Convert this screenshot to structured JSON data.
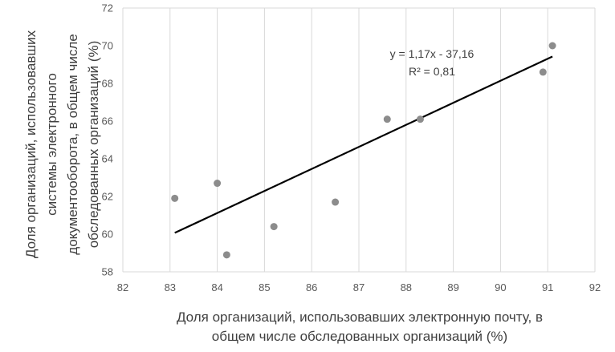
{
  "chart_data": {
    "type": "scatter",
    "title": "",
    "xlabel": "Доля организаций, использовавших электронную почту, в общем числе обследованных организаций (%)",
    "xlabel_lines": [
      "Доля организаций, использовавших электронную почту, в",
      "общем числе обследованных организаций (%)"
    ],
    "ylabel": "Доля организаций, использовавших системы электронного документооборота, в общем числе обследованных организаций (%)",
    "ylabel_lines": [
      "Доля организаций, использовавших",
      "системы электронного",
      "документооборота, в общем числе",
      "обследованных организаций (%)"
    ],
    "xlim": [
      82,
      92
    ],
    "ylim": [
      58,
      72
    ],
    "xticks": [
      82,
      83,
      84,
      85,
      86,
      87,
      88,
      89,
      90,
      91,
      92
    ],
    "yticks": [
      58,
      60,
      62,
      64,
      66,
      68,
      70,
      72
    ],
    "grid": "vertical",
    "legend": "none",
    "points": [
      {
        "x": 83.1,
        "y": 61.9
      },
      {
        "x": 84.0,
        "y": 62.7
      },
      {
        "x": 84.2,
        "y": 58.9
      },
      {
        "x": 85.2,
        "y": 60.4
      },
      {
        "x": 86.5,
        "y": 61.7
      },
      {
        "x": 87.6,
        "y": 66.1
      },
      {
        "x": 88.3,
        "y": 66.1
      },
      {
        "x": 90.9,
        "y": 68.6
      },
      {
        "x": 91.1,
        "y": 70.0
      }
    ],
    "trendline": {
      "type": "linear",
      "slope": 1.17,
      "intercept": -37.16,
      "x_range": [
        83.1,
        91.1
      ]
    },
    "annotations": [
      "y = 1,17x - 37,16",
      "R² = 0,81"
    ],
    "colors": {
      "points": "#8c8c8c",
      "trendline": "#000000",
      "gridlines": "#d9d9d9",
      "text": "#404040"
    }
  }
}
